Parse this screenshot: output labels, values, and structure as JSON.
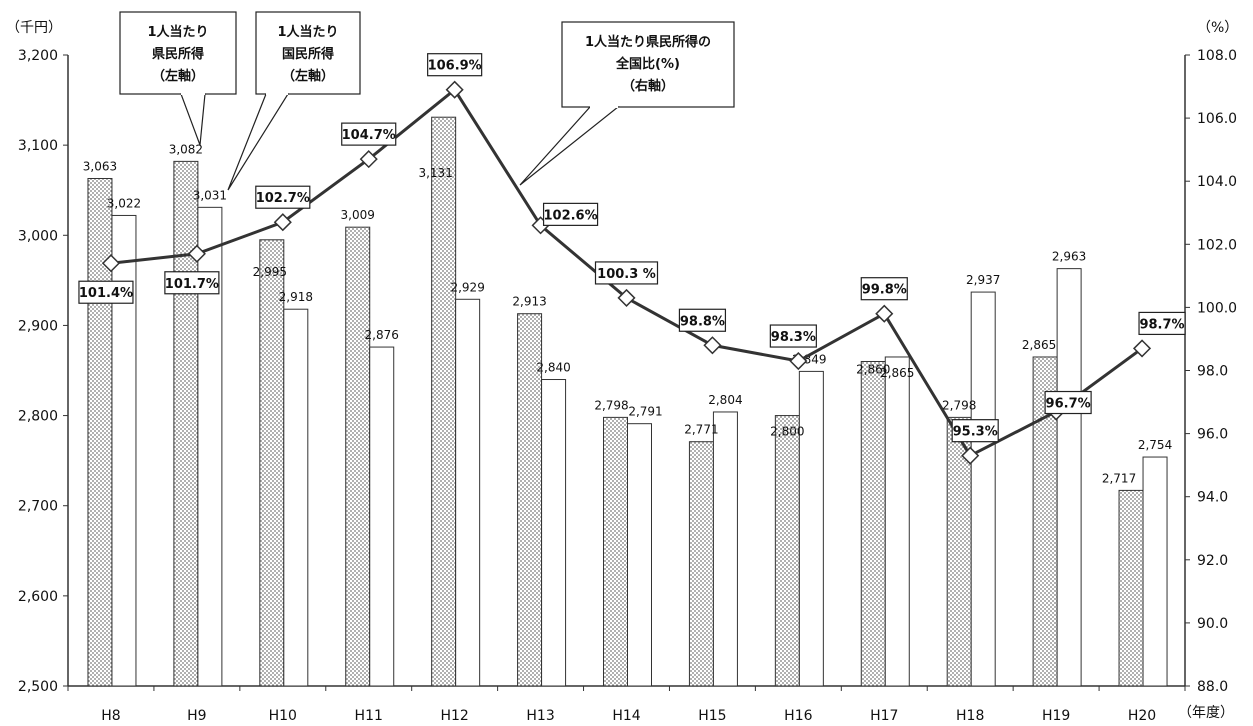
{
  "chart_data": {
    "type": "bar",
    "categories": [
      "H8",
      "H9",
      "H10",
      "H11",
      "H12",
      "H13",
      "H14",
      "H15",
      "H16",
      "H17",
      "H18",
      "H19",
      "H20"
    ],
    "series": [
      {
        "name": "1人当たり県民所得（左軸）",
        "kind": "bar",
        "axis": "left",
        "pattern": "dotted",
        "values": [
          3063,
          3082,
          2995,
          3009,
          3131,
          2913,
          2798,
          2771,
          2800,
          2860,
          2798,
          2865,
          2717
        ],
        "labels": [
          "3,063",
          "3,082",
          "2,995",
          "3,009",
          "3,131",
          "2,913",
          "2,798",
          "2,771",
          "2,800",
          "2,860",
          "2,798",
          "2,865",
          "2,717"
        ]
      },
      {
        "name": "1人当たり国民所得（左軸）",
        "kind": "bar",
        "axis": "left",
        "pattern": "white",
        "values": [
          3022,
          3031,
          2918,
          2876,
          2929,
          2840,
          2791,
          2804,
          2849,
          2865,
          2937,
          2963,
          2754
        ],
        "labels": [
          "3,022",
          "3,031",
          "2,918",
          "2,876",
          "2,929",
          "2,840",
          "2,791",
          "2,804",
          "2,849",
          "2,865",
          "2,937",
          "2,963",
          "2,754"
        ]
      },
      {
        "name": "1人当たり県民所得の全国比(%)（右軸）",
        "kind": "line",
        "axis": "right",
        "values": [
          101.4,
          101.7,
          102.7,
          104.7,
          106.9,
          102.6,
          100.3,
          98.8,
          98.3,
          99.8,
          95.3,
          96.7,
          98.7
        ],
        "labels": [
          "101.4%",
          "101.7%",
          "102.7%",
          "104.7%",
          "106.9%",
          "102.6%",
          "100.3 %",
          "98.8%",
          "98.3%",
          "99.8%",
          "95.3%",
          "96.7%",
          "98.7%"
        ]
      }
    ],
    "y_left": {
      "unit_label": "（千円）",
      "min": 2500,
      "max": 3200,
      "ticks": [
        "2,500",
        "2,600",
        "2,700",
        "2,800",
        "2,900",
        "3,000",
        "3,100",
        "3,200"
      ]
    },
    "y_right": {
      "unit_label": "（%）",
      "min": 88.0,
      "max": 108.0,
      "ticks": [
        "88.0",
        "90.0",
        "92.0",
        "94.0",
        "96.0",
        "98.0",
        "100.0",
        "102.0",
        "104.0",
        "106.0",
        "108.0"
      ]
    },
    "x_unit_label": "（年度）",
    "grid": false,
    "callouts": [
      {
        "lines": [
          "1人当たり",
          "県民所得",
          "（左軸）"
        ]
      },
      {
        "lines": [
          "1人当たり",
          "国民所得",
          "（左軸）"
        ]
      },
      {
        "lines": [
          "1人当たり県民所得の",
          "全国比(%)",
          "（右軸）"
        ]
      }
    ],
    "colors": {
      "bar_fill": "#ffffff",
      "dots": "#777777",
      "line": "#333333",
      "marker": "#ffffff"
    }
  }
}
